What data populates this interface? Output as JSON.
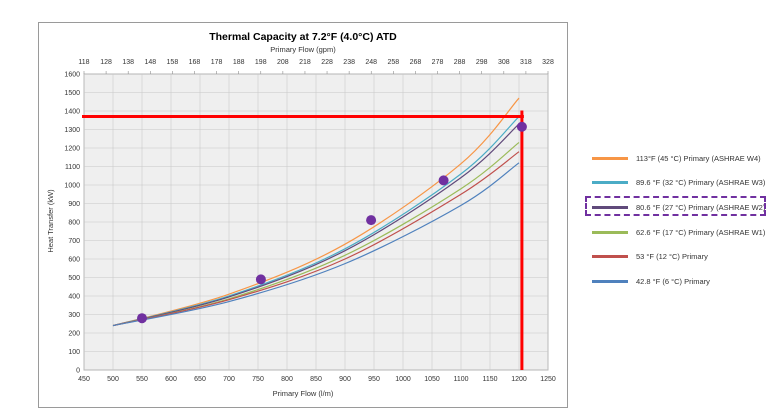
{
  "chart_data": {
    "type": "line",
    "title": "Thermal Capacity at 7.2°F (4.0°C) ATD",
    "top_axis": {
      "label": "Primary Flow (gpm)",
      "range": [
        118,
        328
      ],
      "ticks": [
        "118",
        "128",
        "138",
        "148",
        "158",
        "168",
        "178",
        "188",
        "198",
        "208",
        "218",
        "228",
        "238",
        "248",
        "258",
        "268",
        "278",
        "288",
        "298",
        "308",
        "318",
        "328"
      ]
    },
    "x_axis": {
      "label": "Primary Flow (l/m)",
      "range": [
        450,
        1250
      ],
      "ticks": [
        "450",
        "500",
        "550",
        "600",
        "650",
        "700",
        "750",
        "800",
        "850",
        "900",
        "950",
        "1000",
        "1050",
        "1100",
        "1150",
        "1200",
        "1250"
      ]
    },
    "y_axis": {
      "label": "Heat Transfer (kW)",
      "range": [
        0,
        1600
      ],
      "ticks": [
        "0",
        "100",
        "200",
        "300",
        "400",
        "500",
        "600",
        "700",
        "800",
        "900",
        "1000",
        "1100",
        "1200",
        "1300",
        "1400",
        "1500",
        "1600"
      ]
    },
    "grid": true,
    "series": [
      {
        "name": "113°F (45 °C) Primary (ASHRAE W4)",
        "color": "#f79646",
        "x": [
          500,
          700,
          900,
          1100,
          1200
        ],
        "y": [
          240,
          410,
          680,
          1115,
          1470
        ]
      },
      {
        "name": "89.6 °F (32 °C) Primary (ASHRAE W3)",
        "color": "#4bacc6",
        "x": [
          500,
          700,
          900,
          1100,
          1200
        ],
        "y": [
          240,
          400,
          655,
          1060,
          1370
        ]
      },
      {
        "name": "80.6 °F (27 °C) Primary (ASHRAE W2)",
        "color": "#604a7b",
        "x": [
          500,
          700,
          900,
          1100,
          1200
        ],
        "y": [
          240,
          395,
          645,
          1040,
          1330
        ]
      },
      {
        "name": "62.6 °F (17 °C) Primary (ASHRAE W1)",
        "color": "#9bbb59",
        "x": [
          500,
          700,
          900,
          1100,
          1200
        ],
        "y": [
          240,
          385,
          620,
          980,
          1230
        ]
      },
      {
        "name": "53 °F (12 °C) Primary",
        "color": "#c0504d",
        "x": [
          500,
          700,
          900,
          1100,
          1200
        ],
        "y": [
          240,
          380,
          600,
          950,
          1180
        ]
      },
      {
        "name": "42.8 °F (6 °C) Primary",
        "color": "#4f81bd",
        "x": [
          500,
          700,
          900,
          1100,
          1200
        ],
        "y": [
          240,
          370,
          575,
          890,
          1120
        ]
      }
    ],
    "markers": {
      "color": "#7030a0",
      "x": [
        550,
        755,
        945,
        1070,
        1205
      ],
      "y": [
        280,
        490,
        810,
        1025,
        1315
      ]
    },
    "reference_lines": {
      "color": "#ff0000",
      "horizontal_y": 1370,
      "vertical_x": 1205
    },
    "legend_position": "right",
    "highlighted_legend_entry": 2
  }
}
